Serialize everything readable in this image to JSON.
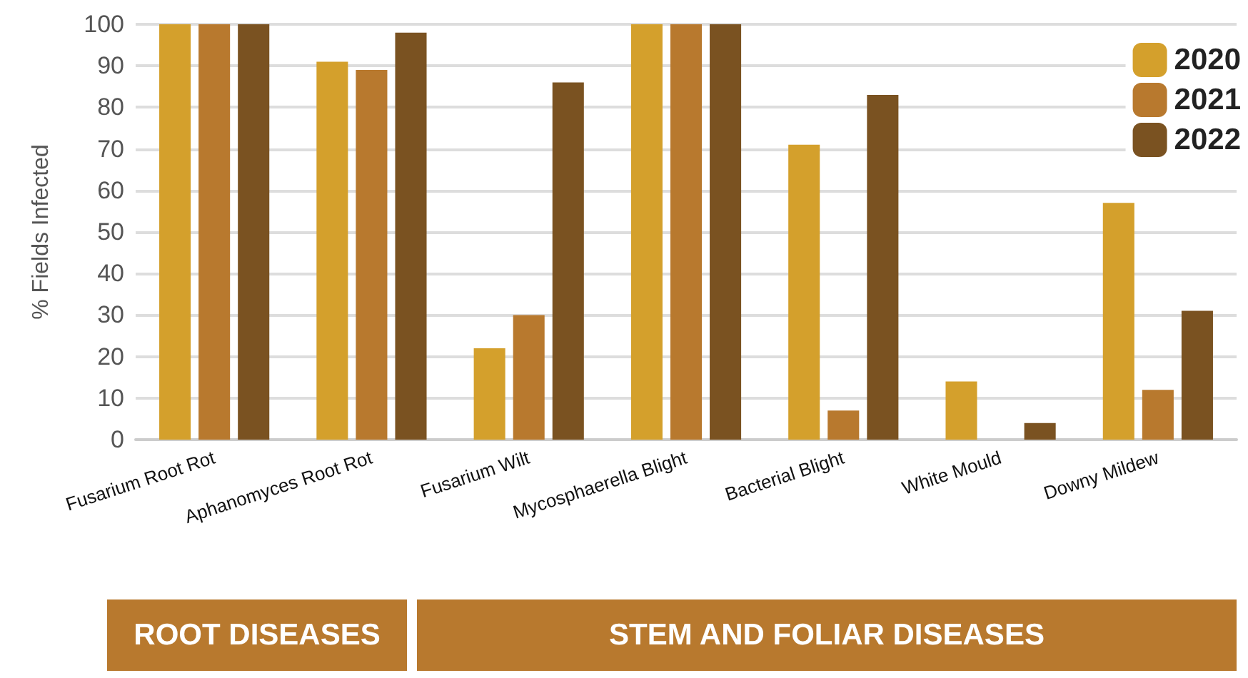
{
  "chart_data": {
    "type": "bar",
    "ylabel": "% Fields Infected",
    "categories": [
      "Fusarium Root Rot",
      "Aphanomyces Root Rot",
      "Fusarium Wilt",
      "Mycosphaerella Blight",
      "Bacterial Blight",
      "White Mould",
      "Downy Mildew"
    ],
    "series": [
      {
        "name": "2020",
        "color": "#d4a02c",
        "values": [
          100,
          91,
          22,
          100,
          71,
          14,
          57
        ]
      },
      {
        "name": "2021",
        "color": "#b8792e",
        "values": [
          100,
          89,
          30,
          100,
          7,
          0,
          12
        ]
      },
      {
        "name": "2022",
        "color": "#7a5221",
        "values": [
          100,
          98,
          86,
          100,
          83,
          4,
          31
        ]
      }
    ],
    "ylim": [
      0,
      100
    ],
    "yticks": [
      0,
      10,
      20,
      30,
      40,
      50,
      60,
      70,
      80,
      90,
      100
    ],
    "grid": "y",
    "legend": "top right",
    "annotations": [
      "ROOT DISEASES",
      "STEM AND FOLIAR DISEASES"
    ]
  }
}
